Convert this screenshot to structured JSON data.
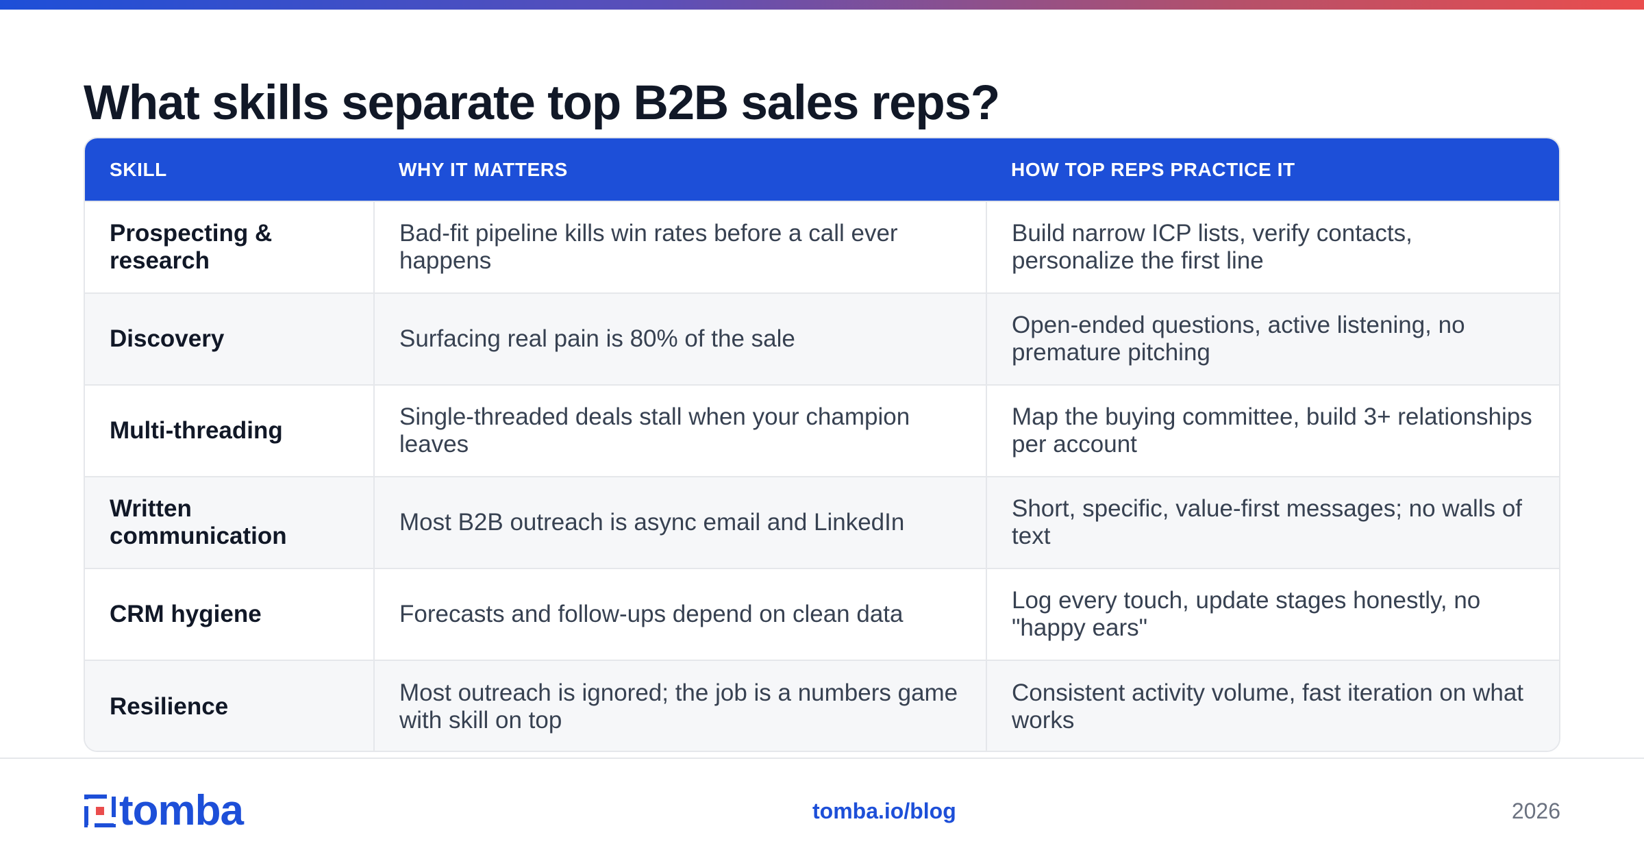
{
  "colors": {
    "brand": "#1d4fd8",
    "accent_end": "#ea4d4d",
    "header_text": "#ffffff",
    "body_text": "#374151",
    "row_alt": "#f6f7f9"
  },
  "page": {
    "title": "What skills separate top B2B sales reps?"
  },
  "table": {
    "headers": [
      "SKILL",
      "WHY IT MATTERS",
      "HOW TOP REPS PRACTICE IT"
    ],
    "rows": [
      {
        "skill": "Prospecting & research",
        "why": "Bad-fit pipeline kills win rates before a call ever happens",
        "how": "Build narrow ICP lists, verify contacts, personalize the first line"
      },
      {
        "skill": "Discovery",
        "why": "Surfacing real pain is 80% of the sale",
        "how": "Open-ended questions, active listening, no premature pitching"
      },
      {
        "skill": "Multi-threading",
        "why": "Single-threaded deals stall when your champion leaves",
        "how": "Map the buying committee, build 3+ relationships per account"
      },
      {
        "skill": "Written communication",
        "why": "Most B2B outreach is async email and LinkedIn",
        "how": "Short, specific, value-first messages; no walls of text"
      },
      {
        "skill": "CRM hygiene",
        "why": "Forecasts and follow-ups depend on clean data",
        "how": "Log every touch, update stages honestly, no \"happy ears\""
      },
      {
        "skill": "Resilience",
        "why": "Most outreach is ignored; the job is a numbers game with skill on top",
        "how": "Consistent activity volume, fast iteration on what works"
      }
    ]
  },
  "footer": {
    "logo_text": "tomba",
    "logo_icon": "tomba-logo-icon",
    "link": "tomba.io/blog",
    "year": "2026"
  }
}
